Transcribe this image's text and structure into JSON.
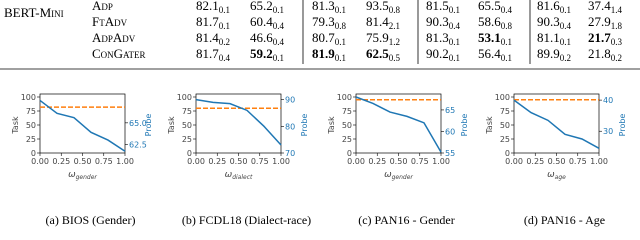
{
  "table": {
    "group": "BERT-Mini",
    "rows": [
      {
        "method": "Adp",
        "cells": [
          {
            "value": "82.1",
            "std": "0.1",
            "bold": false
          },
          {
            "value": "65.2",
            "std": "0.1",
            "bold": false
          },
          {
            "value": "81.3",
            "std": "0.1",
            "bold": false
          },
          {
            "value": "93.5",
            "std": "0.8",
            "bold": false
          },
          {
            "value": "81.5",
            "std": "0.1",
            "bold": false
          },
          {
            "value": "65.5",
            "std": "0.4",
            "bold": false
          },
          {
            "value": "81.6",
            "std": "0.1",
            "bold": false
          },
          {
            "value": "37.4",
            "std": "1.4",
            "bold": false
          }
        ]
      },
      {
        "method": "FtAdv",
        "cells": [
          {
            "value": "81.7",
            "std": "0.1",
            "bold": false
          },
          {
            "value": "60.4",
            "std": "0.4",
            "bold": false
          },
          {
            "value": "79.3",
            "std": "0.8",
            "bold": false
          },
          {
            "value": "81.4",
            "std": "2.1",
            "bold": false
          },
          {
            "value": "90.3",
            "std": "0.4",
            "bold": false
          },
          {
            "value": "58.6",
            "std": "0.8",
            "bold": false
          },
          {
            "value": "90.3",
            "std": "0.4",
            "bold": false
          },
          {
            "value": "27.9",
            "std": "1.8",
            "bold": false
          }
        ]
      },
      {
        "method": "AdpAdv",
        "cells": [
          {
            "value": "81.4",
            "std": "0.2",
            "bold": false
          },
          {
            "value": "46.6",
            "std": "0.4",
            "bold": false
          },
          {
            "value": "80.7",
            "std": "0.1",
            "bold": false
          },
          {
            "value": "75.9",
            "std": "1.2",
            "bold": false
          },
          {
            "value": "81.3",
            "std": "0.1",
            "bold": false
          },
          {
            "value": "53.1",
            "std": "0.1",
            "bold": true
          },
          {
            "value": "81.1",
            "std": "0.1",
            "bold": false
          },
          {
            "value": "21.7",
            "std": "0.3",
            "bold": true
          }
        ]
      },
      {
        "method": "ConGater",
        "cells": [
          {
            "value": "81.7",
            "std": "0.4",
            "bold": false
          },
          {
            "value": "59.2",
            "std": "0.1",
            "bold": true
          },
          {
            "value": "81.9",
            "std": "0.1",
            "bold": true
          },
          {
            "value": "62.5",
            "std": "0.5",
            "bold": true
          },
          {
            "value": "90.2",
            "std": "0.1",
            "bold": false
          },
          {
            "value": "56.4",
            "std": "0.1",
            "bold": false
          },
          {
            "value": "89.9",
            "std": "0.2",
            "bold": false
          },
          {
            "value": "21.8",
            "std": "0.2",
            "bold": false
          }
        ]
      }
    ]
  },
  "chart_data": [
    {
      "type": "line",
      "caption": "(a) BIOS (Gender)",
      "xlabel": {
        "symbol": "ω",
        "subscript": "gender"
      },
      "ylabel": "Task",
      "y2label": "Probe",
      "x": [
        0,
        0.2,
        0.4,
        0.6,
        0.8,
        1.0
      ],
      "xlim": [
        0,
        1
      ],
      "xticks": [
        {
          "value": 0,
          "label": "0.00"
        },
        {
          "value": 0.25,
          "label": "0.25"
        },
        {
          "value": 0.5,
          "label": "0.50"
        },
        {
          "value": 0.75,
          "label": "0.75"
        },
        {
          "value": 1,
          "label": "1.00"
        }
      ],
      "ylim": [
        0,
        100
      ],
      "yticks": [
        0,
        25,
        50,
        75,
        100
      ],
      "y2lim": [
        61.5,
        68
      ],
      "y2ticks": [
        62.5,
        {
          "value": 65,
          "label": "65.0"
        }
      ],
      "series": [
        {
          "color": "#ff7f0e",
          "values": [
            82,
            82,
            82,
            82,
            82,
            82
          ]
        },
        {
          "color": "#1f77b4",
          "axis": "y2",
          "values": [
            67.6,
            66.1,
            65.6,
            63.9,
            63.0,
            61.7
          ]
        }
      ]
    },
    {
      "type": "line",
      "caption": "(b) FCDL18 (Dialect-race)",
      "xlabel": {
        "symbol": "ω",
        "subscript": "dialect"
      },
      "ylabel": "Task",
      "y2label": "Probe",
      "x": [
        0,
        0.2,
        0.4,
        0.6,
        0.8,
        1.0
      ],
      "xlim": [
        0,
        1
      ],
      "xticks": [
        {
          "value": 0,
          "label": "0.00"
        },
        {
          "value": 0.25,
          "label": "0.25"
        },
        {
          "value": 0.5,
          "label": "0.50"
        },
        {
          "value": 0.75,
          "label": "0.75"
        },
        {
          "value": 1,
          "label": "1.00"
        }
      ],
      "ylim": [
        0,
        100
      ],
      "yticks": [
        0,
        25,
        50,
        75,
        100
      ],
      "y2lim": [
        70,
        91
      ],
      "y2ticks": [
        70,
        80,
        90
      ],
      "series": [
        {
          "color": "#ff7f0e",
          "values": [
            80,
            80,
            80,
            80,
            80,
            80
          ]
        },
        {
          "color": "#1f77b4",
          "axis": "y2",
          "values": [
            90,
            89,
            88.5,
            86,
            80,
            73
          ]
        }
      ]
    },
    {
      "type": "line",
      "caption": "(c) PAN16 - Gender",
      "xlabel": {
        "symbol": "ω",
        "subscript": "gender"
      },
      "ylabel": "Task",
      "y2label": "Probe",
      "x": [
        0,
        0.2,
        0.4,
        0.6,
        0.8,
        1.0
      ],
      "xlim": [
        0,
        1
      ],
      "xticks": [
        {
          "value": 0,
          "label": "0.00"
        },
        {
          "value": 0.25,
          "label": "0.25"
        },
        {
          "value": 0.5,
          "label": "0.50"
        },
        {
          "value": 0.75,
          "label": "0.75"
        },
        {
          "value": 1,
          "label": "1.00"
        }
      ],
      "ylim": [
        0,
        100
      ],
      "yticks": [
        0,
        25,
        50,
        75,
        100
      ],
      "y2lim": [
        55,
        68
      ],
      "y2ticks": [
        55,
        60,
        65
      ],
      "series": [
        {
          "color": "#ff7f0e",
          "values": [
            95,
            95,
            95,
            95,
            95,
            95
          ]
        },
        {
          "color": "#1f77b4",
          "axis": "y2",
          "values": [
            68,
            66.5,
            64.5,
            63.5,
            62,
            55.2
          ]
        }
      ]
    },
    {
      "type": "line",
      "caption": "(d) PAN16 - Age",
      "xlabel": {
        "symbol": "ω",
        "subscript": "age"
      },
      "ylabel": "Task",
      "y2label": "Probe",
      "x": [
        0,
        0.2,
        0.4,
        0.6,
        0.8,
        1.0
      ],
      "xlim": [
        0,
        1
      ],
      "xticks": [
        {
          "value": 0,
          "label": "0.00"
        },
        {
          "value": 0.25,
          "label": "0.25"
        },
        {
          "value": 0.5,
          "label": "0.50"
        },
        {
          "value": 0.75,
          "label": "0.75"
        },
        {
          "value": 1,
          "label": "1.00"
        }
      ],
      "ylim": [
        0,
        100
      ],
      "yticks": [
        0,
        25,
        50,
        75,
        100
      ],
      "y2lim": [
        23,
        41
      ],
      "y2ticks": [
        30,
        40
      ],
      "series": [
        {
          "color": "#ff7f0e",
          "values": [
            95,
            95,
            95,
            95,
            95,
            95
          ]
        },
        {
          "color": "#1f77b4",
          "axis": "y2",
          "values": [
            40,
            36,
            33.5,
            29,
            27.5,
            24.5
          ]
        }
      ]
    }
  ]
}
